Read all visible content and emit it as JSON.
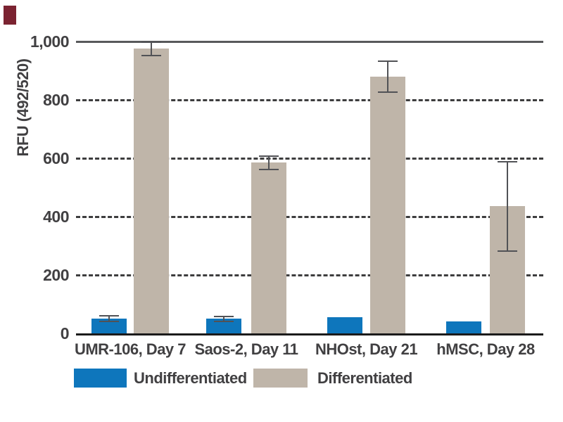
{
  "decoration": {
    "corner_mark_color": "#7b2331"
  },
  "chart_data": {
    "type": "bar",
    "title": "",
    "ylabel": "RFU (492/520)",
    "xlabel": "",
    "categories": [
      "UMR-106, Day 7",
      "Saos-2, Day 11",
      "NHOst, Day 21",
      "hMSC, Day 28"
    ],
    "series": [
      {
        "name": "Undifferentiated",
        "color": "#0e76bc",
        "values": [
          50,
          50,
          55,
          40
        ],
        "errors": [
          7,
          6,
          null,
          null
        ]
      },
      {
        "name": "Differentiated",
        "color": "#bfb5a9",
        "values": [
          975,
          585,
          880,
          435
        ],
        "errors": [
          20,
          20,
          50,
          150
        ]
      }
    ],
    "ylim": [
      0,
      1000
    ],
    "yticks": [
      0,
      200,
      400,
      600,
      800,
      1000
    ],
    "ytick_labels": [
      "0",
      "200",
      "400",
      "600",
      "800",
      "1,000"
    ],
    "grid": "horizontal dashed at 200-800, solid line at 1000, solid axis at 0",
    "legend_position": "bottom",
    "error_bar_color": "#515256"
  },
  "legend": {
    "items": [
      {
        "label": "Undifferentiated",
        "color": "#0e76bc"
      },
      {
        "label": "Differentiated",
        "color": "#bfb5a9"
      }
    ]
  }
}
